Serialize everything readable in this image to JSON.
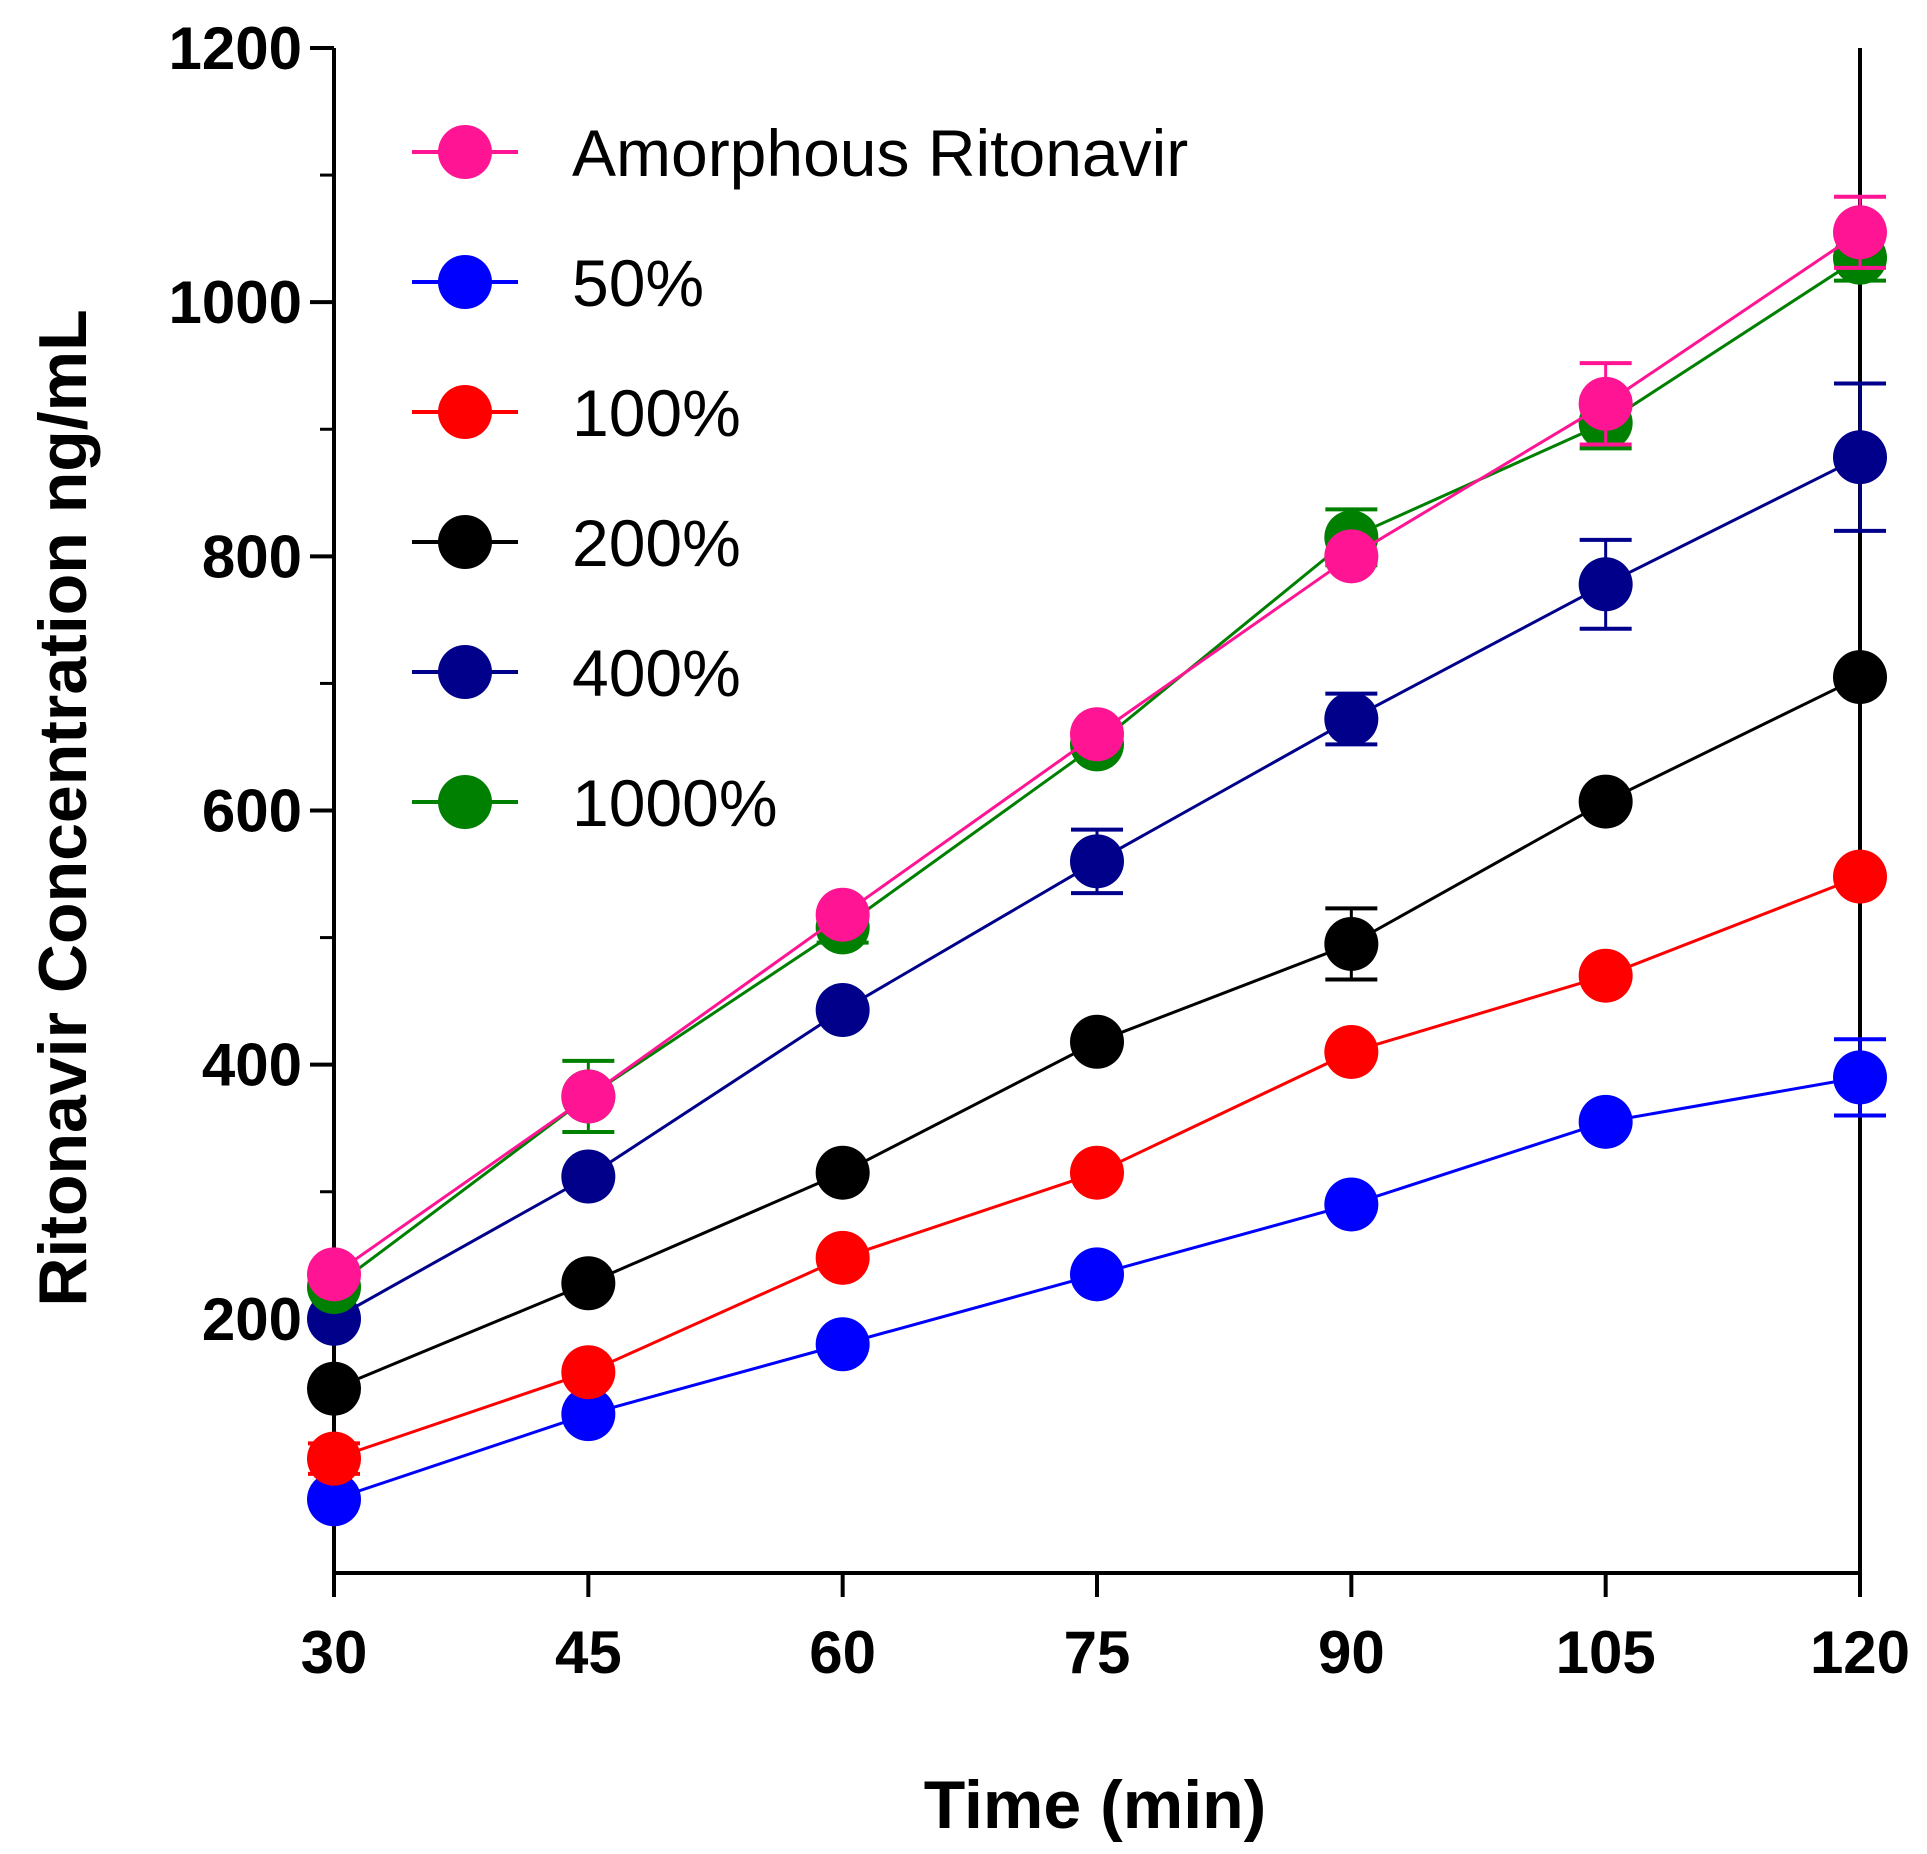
{
  "chart_data": {
    "type": "line",
    "title": "",
    "xlabel": "Time (min)",
    "ylabel": "Ritonavir Concentration ng/mL",
    "x": [
      30,
      45,
      60,
      75,
      90,
      105,
      120
    ],
    "xticks": [
      "30",
      "45",
      "60",
      "75",
      "90",
      "105",
      "120"
    ],
    "yticks": [
      "200",
      "400",
      "600",
      "800",
      "1000",
      "1200"
    ],
    "xlim": [
      30,
      120
    ],
    "ylim": [
      0,
      1200
    ],
    "legend_position": "top-left",
    "grid": false,
    "series": [
      {
        "name": "Amorphous Ritonavir",
        "color": "#ff1493",
        "values": [
          235,
          375,
          518,
          660,
          800,
          920,
          1055
        ],
        "errors": [
          0,
          0,
          0,
          0,
          0,
          32,
          28
        ]
      },
      {
        "name": "50%",
        "color": "#0000ff",
        "values": [
          58,
          125,
          180,
          235,
          290,
          355,
          390
        ],
        "errors": [
          0,
          0,
          0,
          0,
          0,
          0,
          30
        ]
      },
      {
        "name": "100%",
        "color": "#ff0000",
        "values": [
          90,
          158,
          248,
          315,
          410,
          470,
          548
        ],
        "errors": [
          12,
          0,
          0,
          0,
          0,
          0,
          0
        ]
      },
      {
        "name": "200%",
        "color": "#000000",
        "values": [
          145,
          228,
          315,
          418,
          495,
          607,
          705
        ],
        "errors": [
          0,
          0,
          0,
          0,
          28,
          0,
          0
        ]
      },
      {
        "name": "400%",
        "color": "#00008b",
        "values": [
          200,
          312,
          443,
          560,
          672,
          778,
          878
        ],
        "errors": [
          0,
          0,
          0,
          25,
          20,
          35,
          58
        ]
      },
      {
        "name": "1000%",
        "color": "#008000",
        "values": [
          225,
          375,
          508,
          652,
          815,
          905,
          1035
        ],
        "errors": [
          0,
          28,
          12,
          0,
          22,
          20,
          18
        ]
      }
    ]
  }
}
